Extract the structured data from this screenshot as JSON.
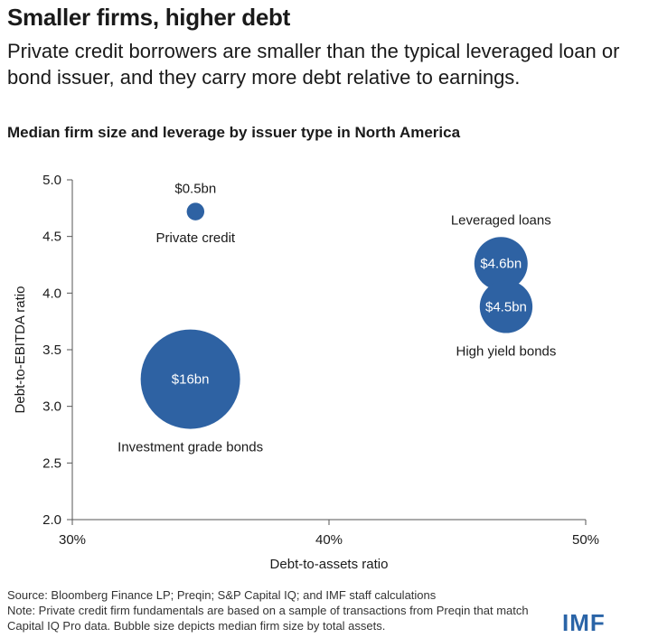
{
  "header": {
    "title": "Smaller firms, higher debt",
    "subtitle": "Private credit borrowers are smaller than the typical leveraged loan or bond issuer, and they carry more debt relative to earnings."
  },
  "chart_title": "Median firm size and leverage by issuer type in North America",
  "colors": {
    "bubble": "#2e62a3",
    "axis": "#555555",
    "text": "#1a1a1a",
    "brand": "#2a64a7"
  },
  "chart_data": {
    "type": "scatter",
    "xlabel": "Debt-to-assets ratio",
    "ylabel": "Debt-to-EBITDA ratio",
    "xlim": [
      30,
      50
    ],
    "ylim": [
      2.0,
      5.0
    ],
    "x_ticks": [
      {
        "value": 30,
        "label": "30%"
      },
      {
        "value": 40,
        "label": "40%"
      },
      {
        "value": 50,
        "label": "50%"
      }
    ],
    "y_ticks": [
      {
        "value": 2.0,
        "label": "2.0"
      },
      {
        "value": 2.5,
        "label": "2.5"
      },
      {
        "value": 3.0,
        "label": "3.0"
      },
      {
        "value": 3.5,
        "label": "3.5"
      },
      {
        "value": 4.0,
        "label": "4.0"
      },
      {
        "value": 4.5,
        "label": "4.5"
      },
      {
        "value": 5.0,
        "label": "5.0"
      }
    ],
    "grid": false,
    "points": [
      {
        "name": "Private credit",
        "x": 34.8,
        "y": 4.72,
        "size_bn": 0.5,
        "size_label": "$0.5bn",
        "label_inside": false,
        "name_position": "below"
      },
      {
        "name": "Leveraged loans",
        "x": 46.7,
        "y": 4.26,
        "size_bn": 4.6,
        "size_label": "$4.6bn",
        "label_inside": true,
        "name_position": "above"
      },
      {
        "name": "High yield bonds",
        "x": 46.9,
        "y": 3.88,
        "size_bn": 4.5,
        "size_label": "$4.5bn",
        "label_inside": true,
        "name_position": "below"
      },
      {
        "name": "Investment grade bonds",
        "x": 34.6,
        "y": 3.24,
        "size_bn": 16,
        "size_label": "$16bn",
        "label_inside": true,
        "name_position": "below"
      }
    ]
  },
  "footnotes": {
    "source": "Source: Bloomberg Finance LP; Preqin; S&P Capital IQ; and IMF staff calculations",
    "note": "Note: Private credit firm fundamentals are based on a sample of transactions from Preqin that match Capital IQ Pro data. Bubble size depicts median firm size by total assets."
  },
  "logo": "IMF"
}
